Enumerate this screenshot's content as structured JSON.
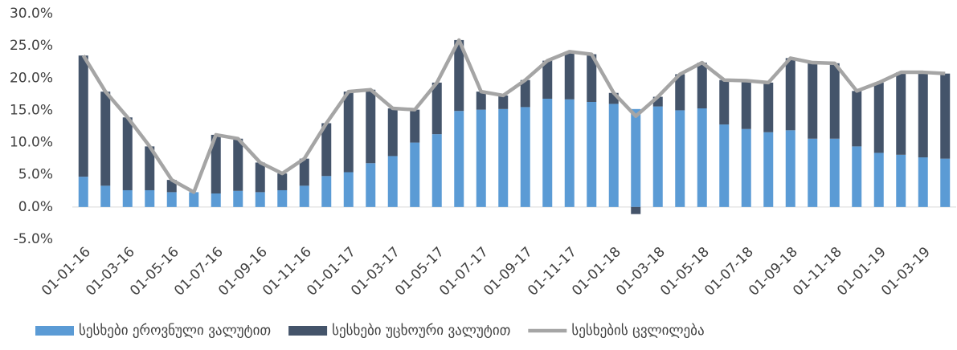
{
  "chart_data": {
    "type": "bar",
    "categories": [
      "01-01-16",
      null,
      "01-03-16",
      null,
      "01-05-16",
      null,
      "01-07-16",
      null,
      "01-09-16",
      null,
      "01-11-16",
      null,
      "01-01-17",
      null,
      "01-03-17",
      null,
      "01-05-17",
      null,
      "01-07-17",
      null,
      "01-09-17",
      null,
      "01-11-17",
      null,
      "01-01-18",
      null,
      "01-03-18",
      null,
      "01-05-18",
      null,
      "01-07-18",
      null,
      "01-09-18",
      null,
      "01-11-18",
      null,
      "01-01-19",
      null,
      "01-03-19",
      null
    ],
    "series": [
      {
        "name": "სესხები ეროვნული ვალუტით",
        "color": "#5b9bd5",
        "type": "bar",
        "values": [
          4.7,
          3.3,
          2.6,
          2.6,
          2.3,
          2.3,
          2.1,
          2.5,
          2.3,
          2.6,
          3.3,
          4.8,
          5.4,
          6.8,
          7.9,
          10.0,
          11.3,
          14.9,
          15.1,
          15.2,
          15.5,
          16.8,
          16.7,
          16.3,
          16.0,
          15.2,
          15.6,
          15.0,
          15.3,
          12.8,
          12.1,
          11.6,
          11.9,
          10.6,
          10.6,
          9.4,
          8.4,
          8.1,
          7.7,
          7.5
        ]
      },
      {
        "name": "სესხები უცხოური ვალუტით",
        "color": "#44546a",
        "type": "bar",
        "values": [
          18.8,
          14.6,
          11.3,
          6.8,
          1.9,
          0.0,
          9.1,
          8.1,
          4.6,
          2.6,
          4.2,
          8.2,
          12.5,
          11.4,
          7.4,
          5.1,
          8.0,
          11.0,
          2.8,
          2.1,
          4.2,
          5.9,
          7.4,
          7.4,
          1.7,
          -1.1,
          1.5,
          5.6,
          7.1,
          6.9,
          7.5,
          7.7,
          11.2,
          11.8,
          11.7,
          8.6,
          10.9,
          12.8,
          13.2,
          13.2
        ]
      },
      {
        "name": "სესხების ცვლილება",
        "color": "#a5a5a5",
        "type": "line",
        "values": [
          23.5,
          17.9,
          13.9,
          9.4,
          4.2,
          2.3,
          11.2,
          10.6,
          6.9,
          5.2,
          7.5,
          13.0,
          17.9,
          18.2,
          15.3,
          15.1,
          19.3,
          25.9,
          17.9,
          17.3,
          19.7,
          22.7,
          24.1,
          23.7,
          17.7,
          14.1,
          17.1,
          20.6,
          22.4,
          19.7,
          19.6,
          19.3,
          23.1,
          22.4,
          22.3,
          18.0,
          19.3,
          20.9,
          20.9,
          20.7
        ]
      }
    ],
    "ylim": [
      -5,
      30
    ],
    "yticks": [
      {
        "value": -5,
        "label": "-5.0%"
      },
      {
        "value": 0,
        "label": "0.0%"
      },
      {
        "value": 5,
        "label": "5.0%"
      },
      {
        "value": 10,
        "label": "10.0%"
      },
      {
        "value": 15,
        "label": "15.0%"
      },
      {
        "value": 20,
        "label": "20.0%"
      },
      {
        "value": 25,
        "label": "25.0%"
      },
      {
        "value": 30,
        "label": "30.0%"
      }
    ],
    "grid": false,
    "legend": "bottom"
  }
}
